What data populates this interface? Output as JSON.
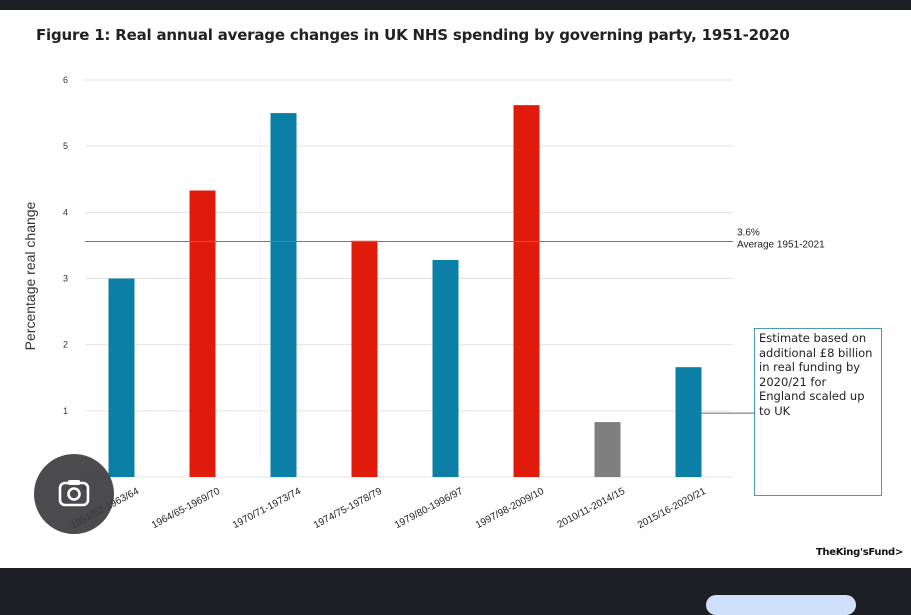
{
  "chart_data": {
    "type": "bar",
    "title": "Figure 1: Real annual average changes in UK NHS spending by governing party, 1951-2020",
    "ylabel": "Percentage real change",
    "xlabel": "",
    "ylim": [
      0,
      6
    ],
    "yticks": [
      1,
      2,
      3,
      4,
      5,
      6
    ],
    "grid": true,
    "categories": [
      "1951/52-1963/64",
      "1964/65-1969/70",
      "1970/71-1973/74",
      "1974/75-1978/79",
      "1979/80-1996/97",
      "1997/98-2009/10",
      "2010/11-2014/15",
      "2015/16-2020/21"
    ],
    "values": [
      3.0,
      4.33,
      5.5,
      3.57,
      3.28,
      5.62,
      0.83,
      1.66
    ],
    "bar_colors": [
      "#0c7fa6",
      "#e01b0c",
      "#0c7fa6",
      "#e01b0c",
      "#0c7fa6",
      "#e01b0c",
      "#7f7f7f",
      "#0c7fa6"
    ],
    "reference_line": {
      "value": 3.56,
      "label_value": "3.6%",
      "label_text": "Average 1951-2021"
    },
    "annotation": {
      "target_index": 7,
      "lines": [
        "Estimate based on",
        "additional £8 billion",
        "in real funding by",
        "2020/21 for",
        "England scaled up",
        "to UK"
      ]
    }
  },
  "brand": "TheKing'sFund>",
  "icons": {
    "lens": "google-lens-icon"
  }
}
